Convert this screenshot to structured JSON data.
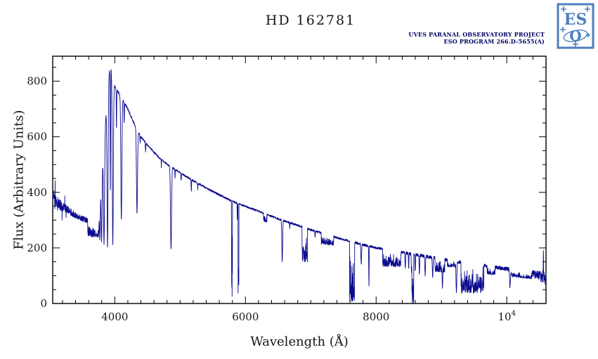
{
  "title": "HD 162781",
  "credits": {
    "line1": "UVES PARANAL OBSERVATORY PROJECT",
    "line2": "ESO PROGRAM 266.D-5655(A)"
  },
  "logo": {
    "line1": "ES",
    "line2": "O"
  },
  "colors": {
    "spectrum": "#0b0b8f",
    "frame": "#000000",
    "logo": "#4d7fbe",
    "credits": "#000066"
  },
  "chart_data": {
    "type": "line",
    "title": "HD 162781",
    "subtitle": "UVES PARANAL OBSERVATORY PROJECT / ESO PROGRAM 266.D-5655(A)",
    "series_name": "HD 162781 UVES flux spectrum",
    "xlabel": "Wavelength (Å)",
    "ylabel": "Flux (Arbitrary Units)",
    "xlim": [
      3050,
      10600
    ],
    "ylim": [
      0,
      890
    ],
    "grid": false,
    "legend": "none",
    "line_color": "#0b0b8f",
    "x_ticks": [
      {
        "value": 4000,
        "label": "4000"
      },
      {
        "value": 6000,
        "label": "6000"
      },
      {
        "value": 8000,
        "label": "8000"
      },
      {
        "value": 10000,
        "label": "10^4"
      }
    ],
    "x_minor_step": 200,
    "y_ticks": [
      {
        "value": 0,
        "label": "0"
      },
      {
        "value": 200,
        "label": "200"
      },
      {
        "value": 400,
        "label": "400"
      },
      {
        "value": 600,
        "label": "600"
      },
      {
        "value": 800,
        "label": "800"
      }
    ],
    "y_minor_step": 50,
    "continuum": [
      [
        3050,
        390
      ],
      [
        3100,
        372
      ],
      [
        3150,
        358
      ],
      [
        3200,
        348
      ],
      [
        3300,
        335
      ],
      [
        3400,
        318
      ],
      [
        3500,
        306
      ],
      [
        3600,
        298
      ],
      [
        3680,
        290
      ],
      [
        3740,
        292
      ],
      [
        3765,
        325
      ],
      [
        3790,
        420
      ],
      [
        3815,
        505
      ],
      [
        3840,
        590
      ],
      [
        3865,
        675
      ],
      [
        3890,
        760
      ],
      [
        3915,
        835
      ],
      [
        3935,
        858
      ],
      [
        3955,
        838
      ],
      [
        3975,
        805
      ],
      [
        4000,
        782
      ],
      [
        4050,
        762
      ],
      [
        4100,
        742
      ],
      [
        4150,
        722
      ],
      [
        4200,
        700
      ],
      [
        4250,
        672
      ],
      [
        4300,
        646
      ],
      [
        4350,
        622
      ],
      [
        4400,
        600
      ],
      [
        4500,
        570
      ],
      [
        4600,
        544
      ],
      [
        4700,
        520
      ],
      [
        4800,
        502
      ],
      [
        4900,
        486
      ],
      [
        5000,
        470
      ],
      [
        5100,
        456
      ],
      [
        5200,
        442
      ],
      [
        5300,
        429
      ],
      [
        5400,
        416
      ],
      [
        5500,
        403
      ],
      [
        5600,
        391
      ],
      [
        5700,
        379
      ],
      [
        5800,
        368
      ],
      [
        5900,
        359
      ],
      [
        6000,
        350
      ],
      [
        6100,
        341
      ],
      [
        6200,
        332
      ],
      [
        6300,
        323
      ],
      [
        6400,
        314
      ],
      [
        6500,
        305
      ],
      [
        6600,
        297
      ],
      [
        6700,
        289
      ],
      [
        6800,
        281
      ],
      [
        6900,
        273
      ],
      [
        7000,
        265
      ],
      [
        7100,
        258
      ],
      [
        7200,
        251
      ],
      [
        7300,
        244
      ],
      [
        7400,
        237
      ],
      [
        7500,
        230
      ],
      [
        7600,
        224
      ],
      [
        7700,
        218
      ],
      [
        7800,
        212
      ],
      [
        7900,
        206
      ],
      [
        8000,
        200
      ],
      [
        8100,
        196
      ],
      [
        8200,
        192
      ],
      [
        8300,
        188
      ],
      [
        8400,
        184
      ],
      [
        8500,
        180
      ],
      [
        8600,
        176
      ],
      [
        8700,
        172
      ],
      [
        8800,
        168
      ],
      [
        8900,
        164
      ],
      [
        9000,
        160
      ],
      [
        9200,
        152
      ],
      [
        9400,
        145
      ],
      [
        9600,
        138
      ],
      [
        9800,
        131
      ],
      [
        10000,
        124
      ],
      [
        10200,
        116
      ],
      [
        10400,
        106
      ],
      [
        10600,
        93
      ]
    ],
    "absorption_lines": [
      {
        "center": 3712,
        "floor": 238,
        "sigma": 5
      },
      {
        "center": 3723,
        "floor": 242,
        "sigma": 5
      },
      {
        "center": 3735,
        "floor": 238,
        "sigma": 5
      },
      {
        "center": 3751,
        "floor": 243,
        "sigma": 6
      },
      {
        "center": 3771,
        "floor": 232,
        "sigma": 6
      },
      {
        "center": 3798,
        "floor": 226,
        "sigma": 7
      },
      {
        "center": 3835,
        "floor": 214,
        "sigma": 8
      },
      {
        "center": 3889,
        "floor": 204,
        "sigma": 8
      },
      {
        "center": 3933,
        "floor": 400,
        "sigma": 4
      },
      {
        "center": 3970,
        "floor": 213,
        "sigma": 8
      },
      {
        "center": 4026,
        "floor": 625,
        "sigma": 3
      },
      {
        "center": 4101,
        "floor": 302,
        "sigma": 8
      },
      {
        "center": 4144,
        "floor": 645,
        "sigma": 3
      },
      {
        "center": 4340,
        "floor": 326,
        "sigma": 8
      },
      {
        "center": 4388,
        "floor": 575,
        "sigma": 3
      },
      {
        "center": 4471,
        "floor": 545,
        "sigma": 3
      },
      {
        "center": 4713,
        "floor": 492,
        "sigma": 2
      },
      {
        "center": 4861,
        "floor": 194,
        "sigma": 8
      },
      {
        "center": 4922,
        "floor": 452,
        "sigma": 3
      },
      {
        "center": 5016,
        "floor": 440,
        "sigma": 3
      },
      {
        "center": 5172,
        "floor": 402,
        "sigma": 3
      },
      {
        "center": 5270,
        "floor": 412,
        "sigma": 2
      },
      {
        "center": 5876,
        "floor": 302,
        "sigma": 3
      },
      {
        "center": 6563,
        "floor": 150,
        "sigma": 6
      },
      {
        "center": 6678,
        "floor": 272,
        "sigma": 3
      },
      {
        "center": 7065,
        "floor": 238,
        "sigma": 3
      },
      {
        "center": 7772,
        "floor": 140,
        "sigma": 5
      },
      {
        "center": 7890,
        "floor": 60,
        "sigma": 3
      },
      {
        "center": 8446,
        "floor": 124,
        "sigma": 4
      },
      {
        "center": 8498,
        "floor": 122,
        "sigma": 3
      },
      {
        "center": 8542,
        "floor": 108,
        "sigma": 4
      },
      {
        "center": 8598,
        "floor": 116,
        "sigma": 4
      },
      {
        "center": 8662,
        "floor": 104,
        "sigma": 4
      },
      {
        "center": 8750,
        "floor": 100,
        "sigma": 5
      },
      {
        "center": 8865,
        "floor": 94,
        "sigma": 5
      },
      {
        "center": 9015,
        "floor": 54,
        "sigma": 5
      },
      {
        "center": 9229,
        "floor": 44,
        "sigma": 6
      },
      {
        "center": 9546,
        "floor": 34,
        "sigma": 6
      },
      {
        "center": 10049,
        "floor": 56,
        "sigma": 6
      }
    ],
    "absorption_bands": [
      {
        "from": 3585,
        "to": 3745,
        "floor": 216,
        "strength": 0.7
      },
      {
        "from": 5786,
        "to": 5800,
        "floor": 0,
        "strength": 1.0
      },
      {
        "from": 5886,
        "to": 5900,
        "floor": 0,
        "strength": 1.0
      },
      {
        "from": 6276,
        "to": 6330,
        "floor": 262,
        "strength": 0.5
      },
      {
        "from": 6865,
        "to": 6950,
        "floor": 134,
        "strength": 0.9
      },
      {
        "from": 7160,
        "to": 7350,
        "floor": 186,
        "strength": 0.6
      },
      {
        "from": 7595,
        "to": 7670,
        "floor": 0,
        "strength": 0.97
      },
      {
        "from": 8100,
        "to": 8380,
        "floor": 116,
        "strength": 0.78
      },
      {
        "from": 8546,
        "to": 8576,
        "floor": 0,
        "strength": 1.0
      },
      {
        "from": 8900,
        "to": 9050,
        "floor": 86,
        "strength": 0.65
      },
      {
        "from": 9090,
        "to": 9230,
        "floor": 108,
        "strength": 0.5
      },
      {
        "from": 9300,
        "to": 9650,
        "floor": 28,
        "strength": 0.92
      },
      {
        "from": 9700,
        "to": 9820,
        "floor": 80,
        "strength": 0.55
      },
      {
        "from": 10060,
        "to": 10380,
        "floor": 70,
        "strength": 0.5
      }
    ],
    "emission_spikes": [
      {
        "center": 10560,
        "height": 82,
        "sigma": 3
      }
    ],
    "noise_profile": [
      [
        3050,
        24
      ],
      [
        3250,
        15
      ],
      [
        3450,
        11
      ],
      [
        3650,
        9
      ],
      [
        3900,
        6
      ],
      [
        4200,
        4
      ],
      [
        5000,
        3.5
      ],
      [
        6500,
        3.5
      ],
      [
        8000,
        4.5
      ],
      [
        8800,
        6
      ],
      [
        9300,
        7
      ],
      [
        9900,
        7
      ],
      [
        10250,
        9
      ],
      [
        10480,
        16
      ],
      [
        10600,
        26
      ]
    ]
  }
}
